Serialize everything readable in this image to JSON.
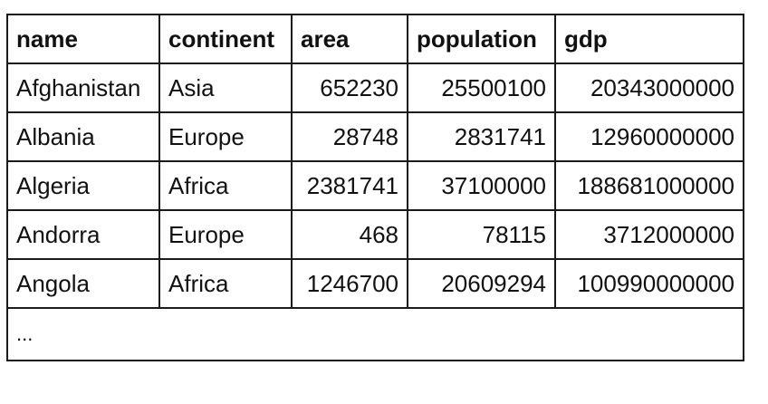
{
  "table": {
    "headers": [
      "name",
      "continent",
      "area",
      "population",
      "gdp"
    ],
    "rows": [
      [
        "Afghanistan",
        "Asia",
        "652230",
        "25500100",
        "20343000000"
      ],
      [
        "Albania",
        "Europe",
        "28748",
        "2831741",
        "12960000000"
      ],
      [
        "Algeria",
        "Africa",
        "2381741",
        "37100000",
        "188681000000"
      ],
      [
        "Andorra",
        "Europe",
        "468",
        "78115",
        "3712000000"
      ],
      [
        "Angola",
        "Africa",
        "1246700",
        "20609294",
        "100990000000"
      ]
    ],
    "ellipsis": "..."
  }
}
